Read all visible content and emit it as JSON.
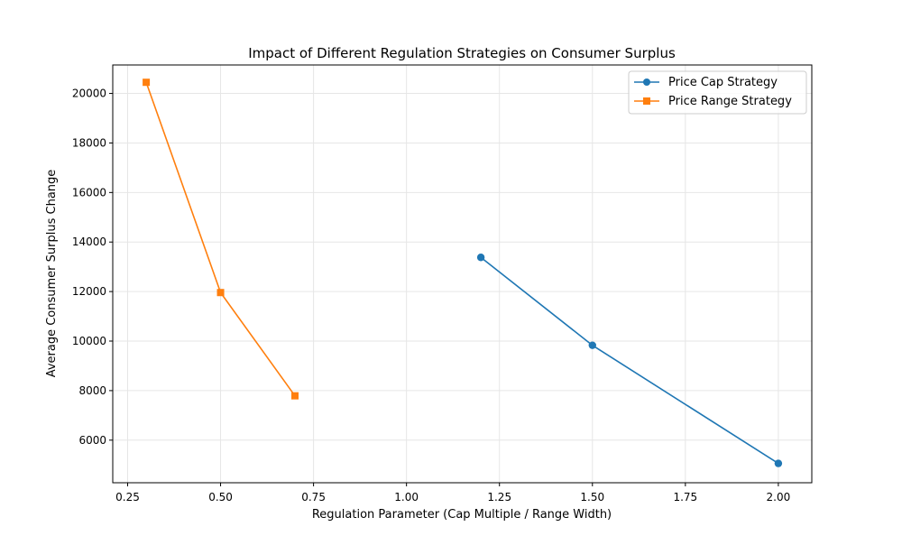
{
  "chart_data": {
    "type": "line",
    "title": "Impact of Different Regulation Strategies on Consumer Surplus",
    "xlabel": "Regulation Parameter (Cap Multiple / Range Width)",
    "ylabel": "Average Consumer Surplus Change",
    "xlim": [
      0.21,
      2.09
    ],
    "ylim": [
      4280,
      21150
    ],
    "xticks": [
      0.25,
      0.5,
      0.75,
      1.0,
      1.25,
      1.5,
      1.75,
      2.0
    ],
    "xtick_labels": [
      "0.25",
      "0.50",
      "0.75",
      "1.00",
      "1.25",
      "1.50",
      "1.75",
      "2.00"
    ],
    "yticks": [
      6000,
      8000,
      10000,
      12000,
      14000,
      16000,
      18000,
      20000
    ],
    "ytick_labels": [
      "6000",
      "8000",
      "10000",
      "12000",
      "14000",
      "16000",
      "18000",
      "20000"
    ],
    "grid": true,
    "legend_position": "top-right",
    "series": [
      {
        "name": "Price Cap Strategy",
        "color": "#1f77b4",
        "marker": "circle",
        "x": [
          1.2,
          1.5,
          2.0
        ],
        "y": [
          13380,
          9830,
          5060
        ]
      },
      {
        "name": "Price Range Strategy",
        "color": "#ff7f0e",
        "marker": "square",
        "x": [
          0.3,
          0.5,
          0.7
        ],
        "y": [
          20450,
          11960,
          7790
        ]
      }
    ]
  }
}
